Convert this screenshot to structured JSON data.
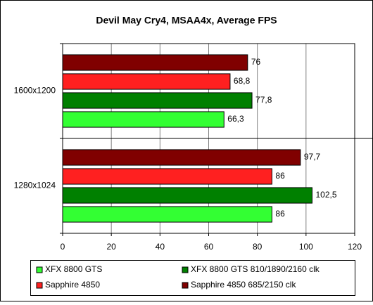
{
  "chart_data": {
    "type": "hbar",
    "title": "Devil May Cry4, MSAA4x, Average FPS",
    "categories": [
      "1600x1200",
      "1280x1024"
    ],
    "series": [
      {
        "name": "XFX 8800 GTS",
        "color": "#33ff33",
        "values": [
          66.3,
          86
        ],
        "value_labels": [
          "66,3",
          "86"
        ]
      },
      {
        "name": "XFX 8800 GTS 810/1890/2160 clk",
        "color": "#008000",
        "values": [
          77.8,
          102.5
        ],
        "value_labels": [
          "77,8",
          "102,5"
        ]
      },
      {
        "name": "Sapphire 4850",
        "color": "#ff2020",
        "values": [
          68.8,
          86
        ],
        "value_labels": [
          "68,8",
          "86"
        ]
      },
      {
        "name": "Sapphire 4850 685/2150 clk",
        "color": "#800000",
        "values": [
          76,
          97.7
        ],
        "value_labels": [
          "76",
          "97,7"
        ]
      }
    ],
    "xlim": [
      0,
      120
    ],
    "xticks": [
      0,
      20,
      40,
      60,
      80,
      100,
      120
    ],
    "grid": true
  }
}
